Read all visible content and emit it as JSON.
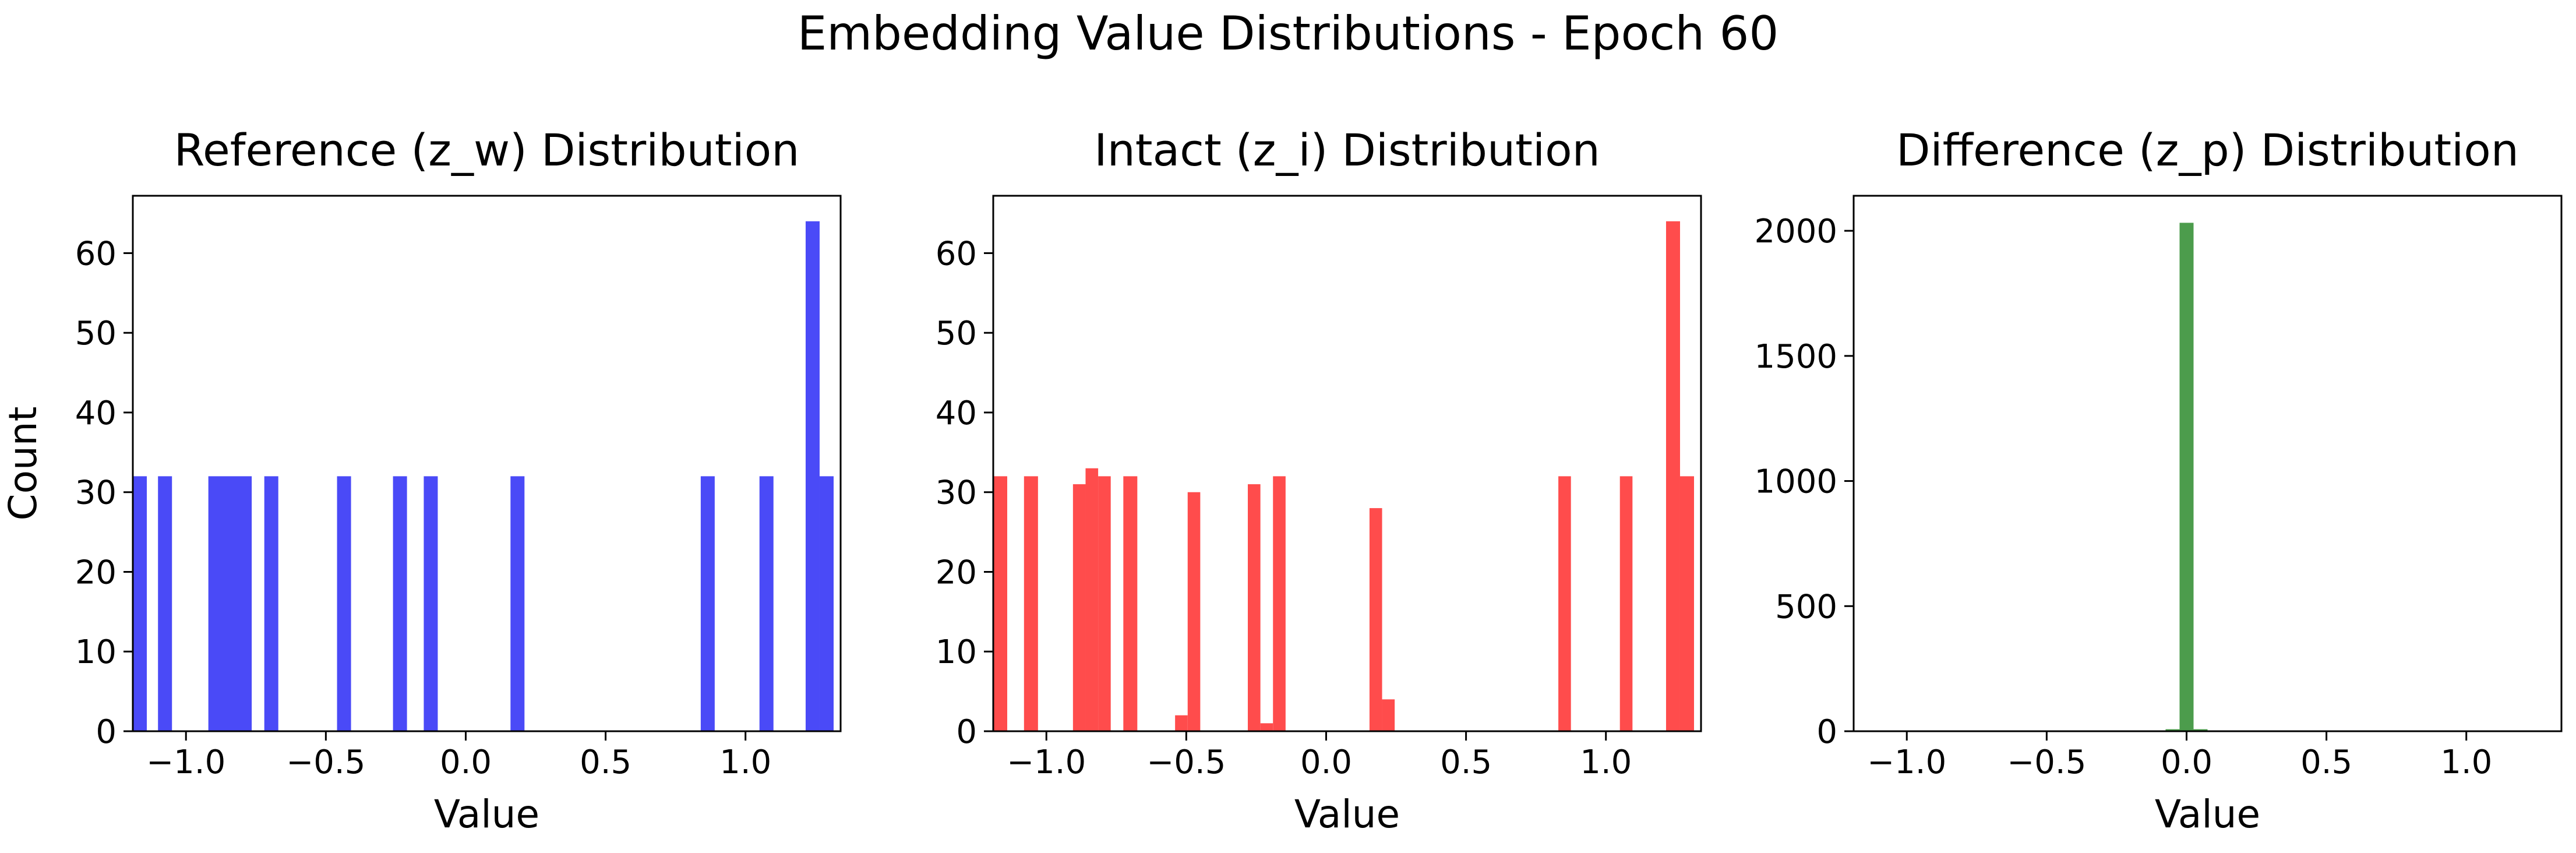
{
  "figure": {
    "title": "Embedding Value Distributions - Epoch 60"
  },
  "chart_data": [
    {
      "type": "histogram",
      "title": "Reference (z_w) Distribution",
      "xlabel": "Value",
      "ylabel": "Count",
      "color": "#4a4af7",
      "xlim": [
        -1.19,
        1.34
      ],
      "ylim": [
        0,
        67.2
      ],
      "x_ticks": [
        -1.0,
        -0.5,
        0.0,
        0.5,
        1.0
      ],
      "x_tick_labels": [
        "−1.0",
        "−0.5",
        "0.0",
        "0.5",
        "1.0"
      ],
      "y_ticks": [
        0,
        10,
        20,
        30,
        40,
        50,
        60
      ],
      "y_tick_labels": [
        "0",
        "10",
        "20",
        "30",
        "40",
        "50",
        "60"
      ],
      "bins": [
        {
          "x0": -1.19,
          "x1": -1.14,
          "count": 32
        },
        {
          "x0": -1.1,
          "x1": -1.05,
          "count": 32
        },
        {
          "x0": -0.92,
          "x1": -0.765,
          "count": 32
        },
        {
          "x0": -0.72,
          "x1": -0.67,
          "count": 32
        },
        {
          "x0": -0.46,
          "x1": -0.41,
          "count": 32
        },
        {
          "x0": -0.26,
          "x1": -0.21,
          "count": 32
        },
        {
          "x0": -0.15,
          "x1": -0.1,
          "count": 32
        },
        {
          "x0": 0.16,
          "x1": 0.21,
          "count": 32
        },
        {
          "x0": 0.84,
          "x1": 0.89,
          "count": 32
        },
        {
          "x0": 1.05,
          "x1": 1.1,
          "count": 32
        },
        {
          "x0": 1.215,
          "x1": 1.265,
          "count": 64
        },
        {
          "x0": 1.265,
          "x1": 1.315,
          "count": 32
        }
      ]
    },
    {
      "type": "histogram",
      "title": "Intact (z_i) Distribution",
      "xlabel": "Value",
      "ylabel": "",
      "color": "#ff4c4c",
      "xlim": [
        -1.19,
        1.34
      ],
      "ylim": [
        0,
        67.2
      ],
      "x_ticks": [
        -1.0,
        -0.5,
        0.0,
        0.5,
        1.0
      ],
      "x_tick_labels": [
        "−1.0",
        "−0.5",
        "0.0",
        "0.5",
        "1.0"
      ],
      "y_ticks": [
        0,
        10,
        20,
        30,
        40,
        50,
        60
      ],
      "y_tick_labels": [
        "0",
        "10",
        "20",
        "30",
        "40",
        "50",
        "60"
      ],
      "bins": [
        {
          "x0": -1.19,
          "x1": -1.14,
          "count": 32
        },
        {
          "x0": -1.08,
          "x1": -1.03,
          "count": 32
        },
        {
          "x0": -0.905,
          "x1": -0.86,
          "count": 31
        },
        {
          "x0": -0.86,
          "x1": -0.815,
          "count": 33
        },
        {
          "x0": -0.815,
          "x1": -0.77,
          "count": 32
        },
        {
          "x0": -0.725,
          "x1": -0.675,
          "count": 32
        },
        {
          "x0": -0.54,
          "x1": -0.495,
          "count": 2
        },
        {
          "x0": -0.495,
          "x1": -0.45,
          "count": 30
        },
        {
          "x0": -0.28,
          "x1": -0.235,
          "count": 31
        },
        {
          "x0": -0.235,
          "x1": -0.19,
          "count": 1
        },
        {
          "x0": -0.19,
          "x1": -0.145,
          "count": 32
        },
        {
          "x0": 0.155,
          "x1": 0.2,
          "count": 28
        },
        {
          "x0": 0.2,
          "x1": 0.245,
          "count": 4
        },
        {
          "x0": 0.83,
          "x1": 0.875,
          "count": 32
        },
        {
          "x0": 1.05,
          "x1": 1.095,
          "count": 32
        },
        {
          "x0": 1.215,
          "x1": 1.265,
          "count": 64
        },
        {
          "x0": 1.265,
          "x1": 1.315,
          "count": 32
        }
      ]
    },
    {
      "type": "histogram",
      "title": "Difference (z_p) Distribution",
      "xlabel": "Value",
      "ylabel": "",
      "color": "#4c9c4c",
      "xlim": [
        -1.19,
        1.34
      ],
      "ylim": [
        0,
        2140
      ],
      "x_ticks": [
        -1.0,
        -0.5,
        0.0,
        0.5,
        1.0
      ],
      "x_tick_labels": [
        "−1.0",
        "−0.5",
        "0.0",
        "0.5",
        "1.0"
      ],
      "y_ticks": [
        0,
        500,
        1000,
        1500,
        2000
      ],
      "y_tick_labels": [
        "0",
        "500",
        "1000",
        "1500",
        "2000"
      ],
      "bins": [
        {
          "x0": -0.075,
          "x1": -0.025,
          "count": 8
        },
        {
          "x0": -0.025,
          "x1": 0.025,
          "count": 2032
        },
        {
          "x0": 0.025,
          "x1": 0.075,
          "count": 8
        }
      ]
    }
  ]
}
